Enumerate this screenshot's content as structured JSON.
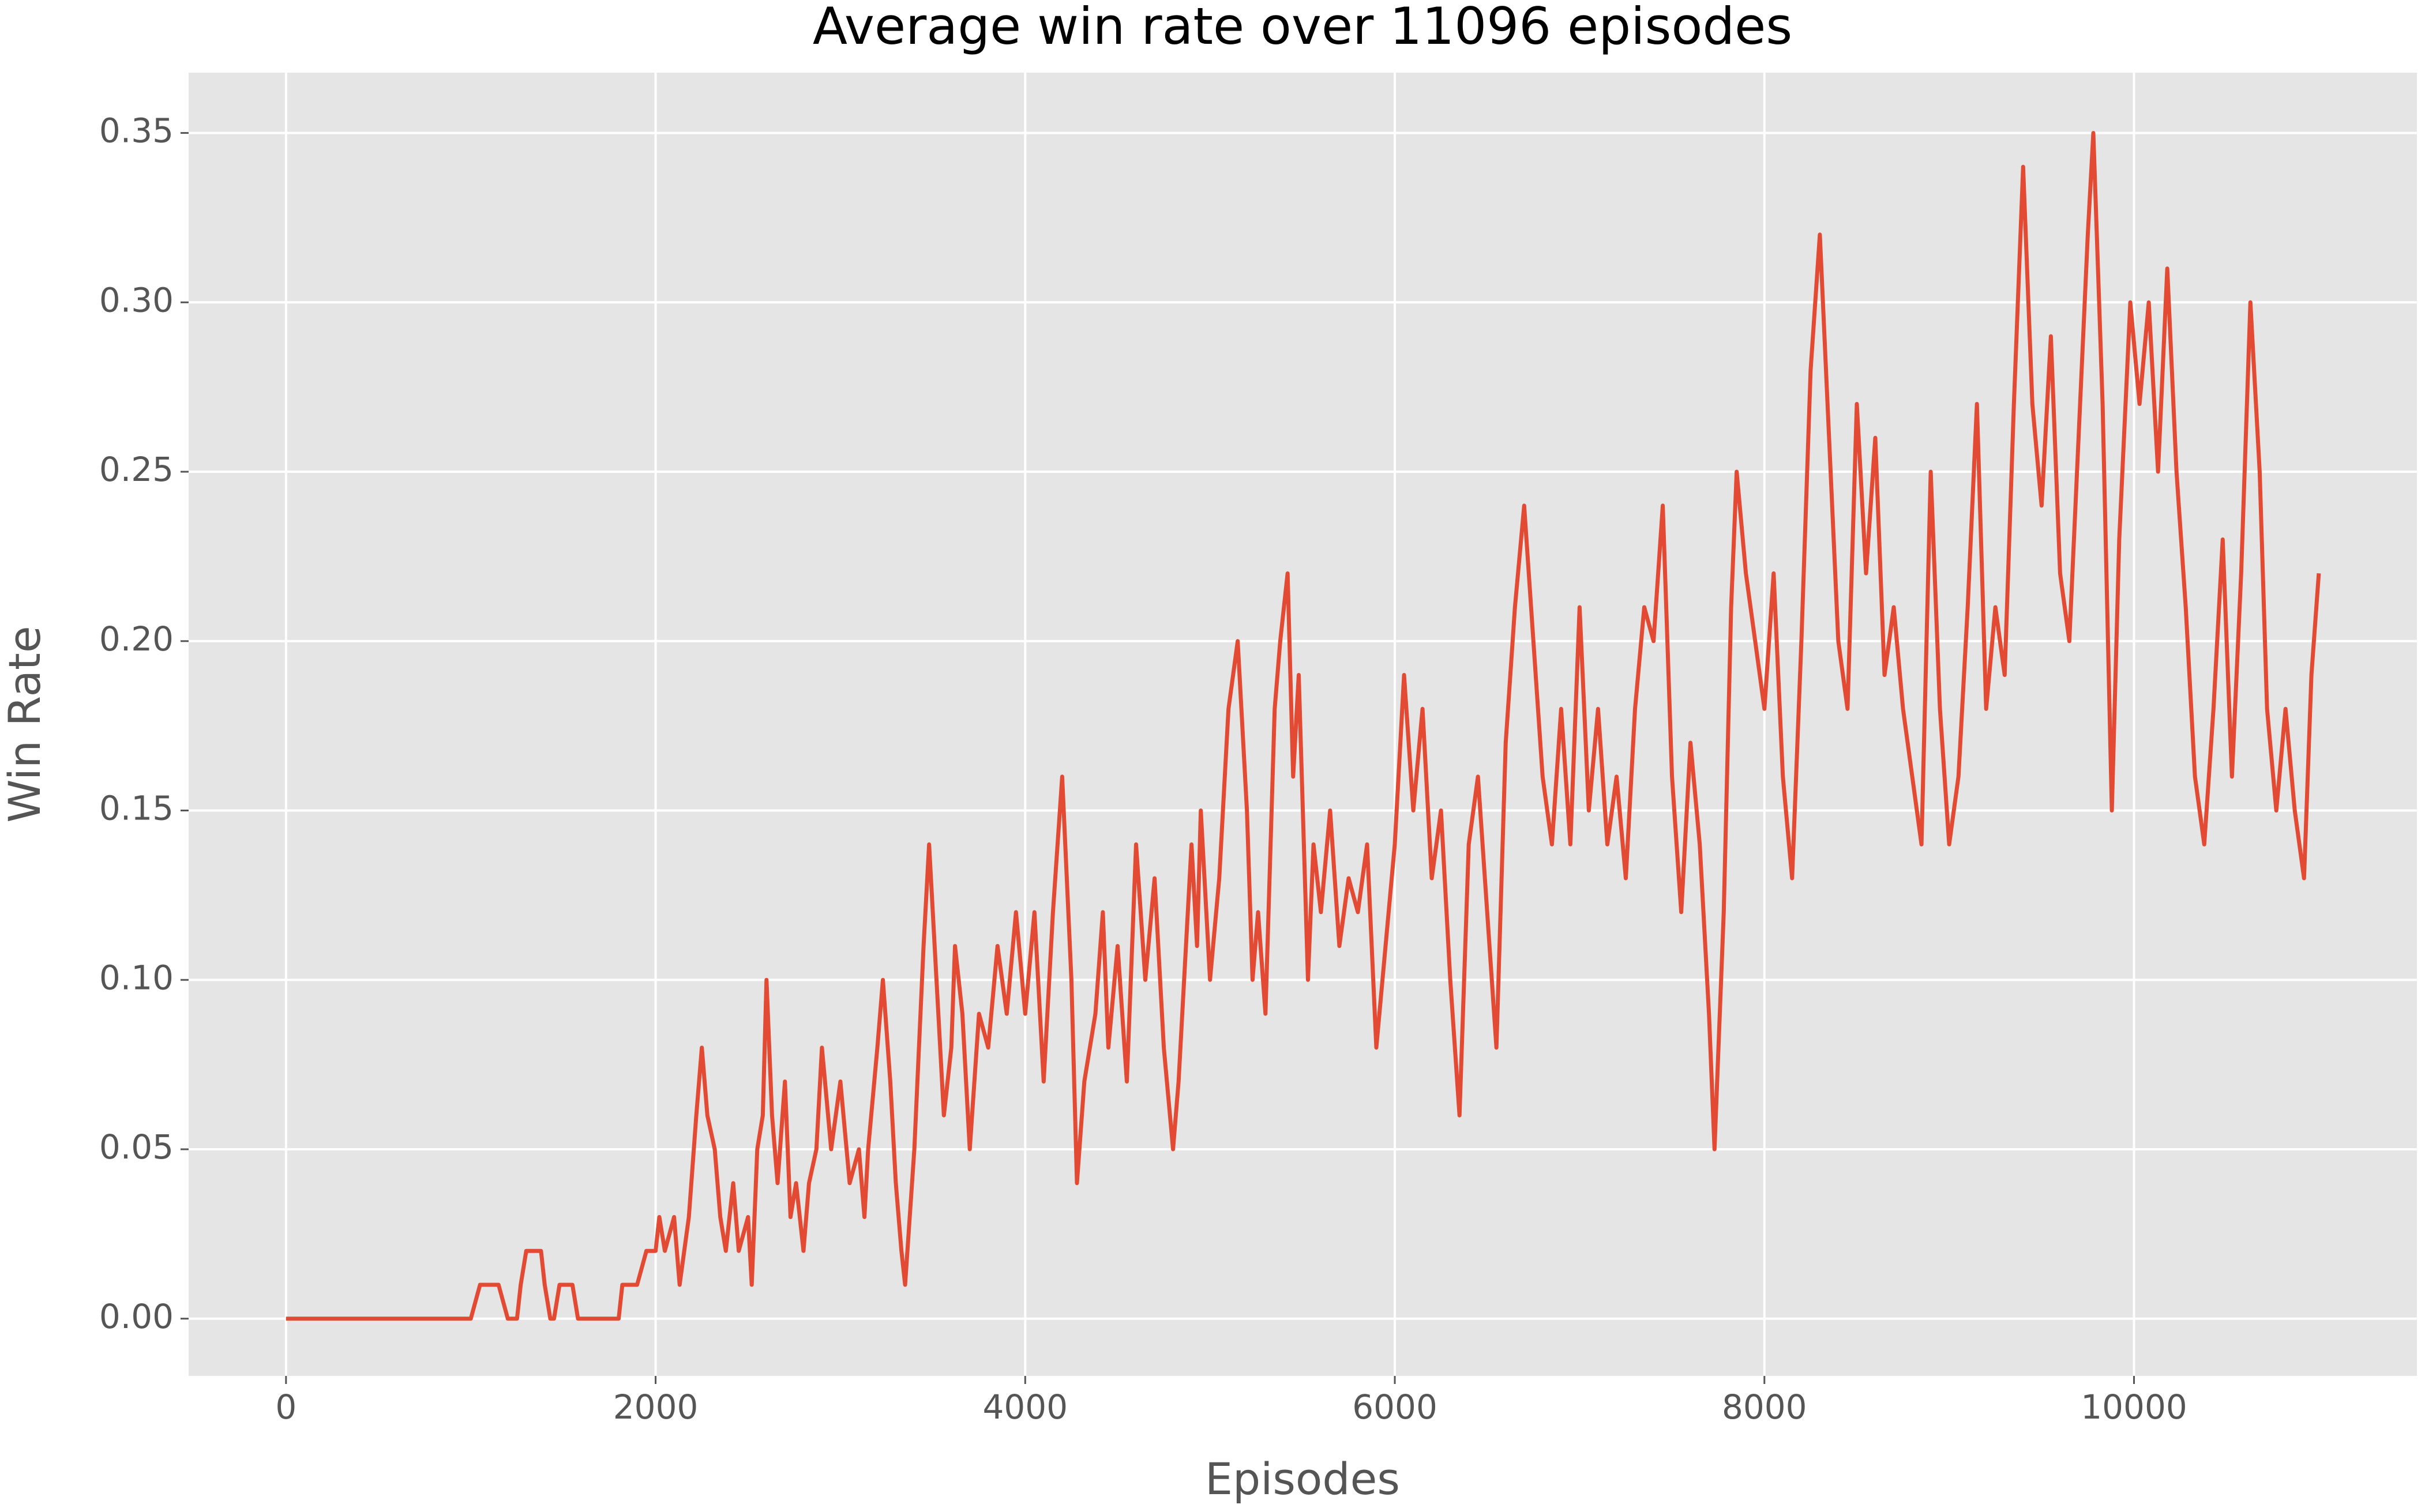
{
  "chart_data": {
    "type": "line",
    "title": "Average win rate over 11096 episodes",
    "x_label": "Episodes",
    "y_label": "Win Rate",
    "color": "#E24A33",
    "grid": true,
    "xlim": [
      -527,
      11531
    ],
    "ylim": [
      -0.0169,
      0.3678
    ],
    "xticks": [
      0,
      2000,
      4000,
      6000,
      8000,
      10000
    ],
    "yticks": [
      {
        "value": 0,
        "label": "0.00"
      },
      0.05,
      {
        "value": 0.1,
        "label": "0.10"
      },
      0.15,
      {
        "value": 0.2,
        "label": "0.20"
      },
      0.25,
      {
        "value": 0.3,
        "label": "0.30"
      },
      0.35
    ],
    "x": [
      0,
      1000,
      1050,
      1150,
      1200,
      1250,
      1270,
      1300,
      1380,
      1400,
      1430,
      1450,
      1480,
      1550,
      1580,
      1800,
      1820,
      1900,
      1950,
      2000,
      2020,
      2050,
      2100,
      2130,
      2180,
      2220,
      2250,
      2280,
      2320,
      2350,
      2380,
      2420,
      2450,
      2500,
      2520,
      2550,
      2580,
      2600,
      2630,
      2660,
      2700,
      2730,
      2760,
      2800,
      2830,
      2870,
      2900,
      2950,
      3000,
      3050,
      3100,
      3130,
      3150,
      3200,
      3230,
      3270,
      3300,
      3330,
      3350,
      3400,
      3450,
      3480,
      3520,
      3560,
      3600,
      3620,
      3660,
      3700,
      3750,
      3800,
      3850,
      3900,
      3950,
      4000,
      4050,
      4100,
      4150,
      4200,
      4250,
      4280,
      4320,
      4380,
      4420,
      4450,
      4500,
      4550,
      4600,
      4650,
      4700,
      4750,
      4800,
      4830,
      4870,
      4900,
      4930,
      4950,
      5000,
      5050,
      5100,
      5150,
      5200,
      5230,
      5260,
      5300,
      5350,
      5380,
      5420,
      5450,
      5480,
      5530,
      5560,
      5600,
      5650,
      5700,
      5750,
      5800,
      5850,
      5900,
      5950,
      6000,
      6050,
      6100,
      6150,
      6200,
      6250,
      6300,
      6350,
      6400,
      6450,
      6500,
      6550,
      6600,
      6650,
      6700,
      6750,
      6800,
      6850,
      6900,
      6950,
      7000,
      7050,
      7100,
      7150,
      7200,
      7250,
      7300,
      7350,
      7400,
      7450,
      7500,
      7550,
      7600,
      7650,
      7700,
      7730,
      7780,
      7820,
      7850,
      7900,
      7950,
      8000,
      8050,
      8100,
      8150,
      8200,
      8250,
      8300,
      8350,
      8400,
      8450,
      8500,
      8550,
      8600,
      8650,
      8700,
      8750,
      8800,
      8850,
      8900,
      8950,
      9000,
      9050,
      9100,
      9150,
      9200,
      9250,
      9300,
      9350,
      9400,
      9450,
      9500,
      9550,
      9600,
      9650,
      9700,
      9750,
      9780,
      9830,
      9880,
      9920,
      9980,
      10030,
      10080,
      10130,
      10180,
      10230,
      10280,
      10330,
      10380,
      10430,
      10480,
      10530,
      10580,
      10630,
      10680,
      10720,
      10770,
      10820,
      10870,
      10920,
      10960,
      11000
    ],
    "values": [
      0,
      0,
      0.01,
      0.01,
      0,
      0,
      0.01,
      0.02,
      0.02,
      0.01,
      0,
      0,
      0.01,
      0.01,
      0,
      0,
      0.01,
      0.01,
      0.02,
      0.02,
      0.03,
      0.02,
      0.03,
      0.01,
      0.03,
      0.06,
      0.08,
      0.06,
      0.05,
      0.03,
      0.02,
      0.04,
      0.02,
      0.03,
      0.01,
      0.05,
      0.06,
      0.1,
      0.06,
      0.04,
      0.07,
      0.03,
      0.04,
      0.02,
      0.04,
      0.05,
      0.08,
      0.05,
      0.07,
      0.04,
      0.05,
      0.03,
      0.05,
      0.08,
      0.1,
      0.07,
      0.04,
      0.02,
      0.01,
      0.05,
      0.11,
      0.14,
      0.1,
      0.06,
      0.08,
      0.11,
      0.09,
      0.05,
      0.09,
      0.08,
      0.11,
      0.09,
      0.12,
      0.09,
      0.12,
      0.07,
      0.12,
      0.16,
      0.1,
      0.04,
      0.07,
      0.09,
      0.12,
      0.08,
      0.11,
      0.07,
      0.14,
      0.1,
      0.13,
      0.08,
      0.05,
      0.07,
      0.11,
      0.14,
      0.11,
      0.15,
      0.1,
      0.13,
      0.18,
      0.2,
      0.15,
      0.1,
      0.12,
      0.09,
      0.18,
      0.2,
      0.22,
      0.16,
      0.19,
      0.1,
      0.14,
      0.12,
      0.15,
      0.11,
      0.13,
      0.12,
      0.14,
      0.08,
      0.11,
      0.14,
      0.19,
      0.15,
      0.18,
      0.13,
      0.15,
      0.1,
      0.06,
      0.14,
      0.16,
      0.12,
      0.08,
      0.17,
      0.21,
      0.24,
      0.2,
      0.16,
      0.14,
      0.18,
      0.14,
      0.21,
      0.15,
      0.18,
      0.14,
      0.16,
      0.13,
      0.18,
      0.21,
      0.2,
      0.24,
      0.16,
      0.12,
      0.17,
      0.14,
      0.09,
      0.05,
      0.12,
      0.21,
      0.25,
      0.22,
      0.2,
      0.18,
      0.22,
      0.16,
      0.13,
      0.2,
      0.28,
      0.32,
      0.26,
      0.2,
      0.18,
      0.27,
      0.22,
      0.26,
      0.19,
      0.21,
      0.18,
      0.16,
      0.14,
      0.25,
      0.18,
      0.14,
      0.16,
      0.21,
      0.27,
      0.18,
      0.21,
      0.19,
      0.27,
      0.34,
      0.27,
      0.24,
      0.29,
      0.22,
      0.2,
      0.26,
      0.32,
      0.35,
      0.27,
      0.15,
      0.23,
      0.3,
      0.27,
      0.3,
      0.25,
      0.31,
      0.25,
      0.21,
      0.16,
      0.14,
      0.18,
      0.23,
      0.16,
      0.22,
      0.3,
      0.25,
      0.18,
      0.15,
      0.18,
      0.15,
      0.13,
      0.19,
      0.22
    ]
  }
}
